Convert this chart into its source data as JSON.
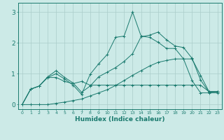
{
  "xlabel": "Humidex (Indice chaleur)",
  "xlim": [
    -0.5,
    23.5
  ],
  "ylim": [
    -0.15,
    3.3
  ],
  "yticks": [
    0,
    1,
    2,
    3
  ],
  "xticks": [
    0,
    1,
    2,
    3,
    4,
    5,
    6,
    7,
    8,
    9,
    10,
    11,
    12,
    13,
    14,
    15,
    16,
    17,
    18,
    19,
    20,
    21,
    22,
    23
  ],
  "background_color": "#cceae7",
  "grid_color": "#aaccca",
  "line_color": "#1a7a6e",
  "figsize": [
    3.2,
    2.0
  ],
  "dpi": 100,
  "series": [
    [
      0.0,
      0.5,
      0.6,
      0.9,
      1.1,
      0.88,
      0.7,
      0.4,
      0.6,
      0.9,
      1.05,
      1.2,
      1.4,
      1.65,
      2.2,
      2.25,
      2.35,
      2.1,
      1.9,
      1.85,
      1.5,
      0.8,
      0.4,
      0.42
    ],
    [
      0.0,
      0.5,
      0.6,
      0.88,
      0.88,
      0.75,
      0.68,
      0.75,
      0.63,
      0.63,
      0.63,
      0.63,
      0.63,
      0.63,
      0.63,
      0.63,
      0.63,
      0.63,
      0.63,
      0.63,
      0.63,
      0.63,
      0.42,
      0.42
    ],
    [
      0.0,
      0.0,
      0.0,
      0.0,
      0.04,
      0.08,
      0.13,
      0.18,
      0.28,
      0.38,
      0.48,
      0.62,
      0.78,
      0.95,
      1.1,
      1.25,
      1.37,
      1.43,
      1.48,
      1.48,
      1.48,
      0.95,
      0.42,
      0.42
    ],
    [
      0.0,
      0.5,
      0.6,
      0.88,
      1.0,
      0.83,
      0.63,
      0.33,
      0.98,
      1.32,
      1.62,
      2.18,
      2.22,
      3.0,
      2.22,
      2.18,
      2.02,
      1.82,
      1.82,
      1.48,
      0.78,
      0.38,
      0.38,
      0.38
    ]
  ]
}
